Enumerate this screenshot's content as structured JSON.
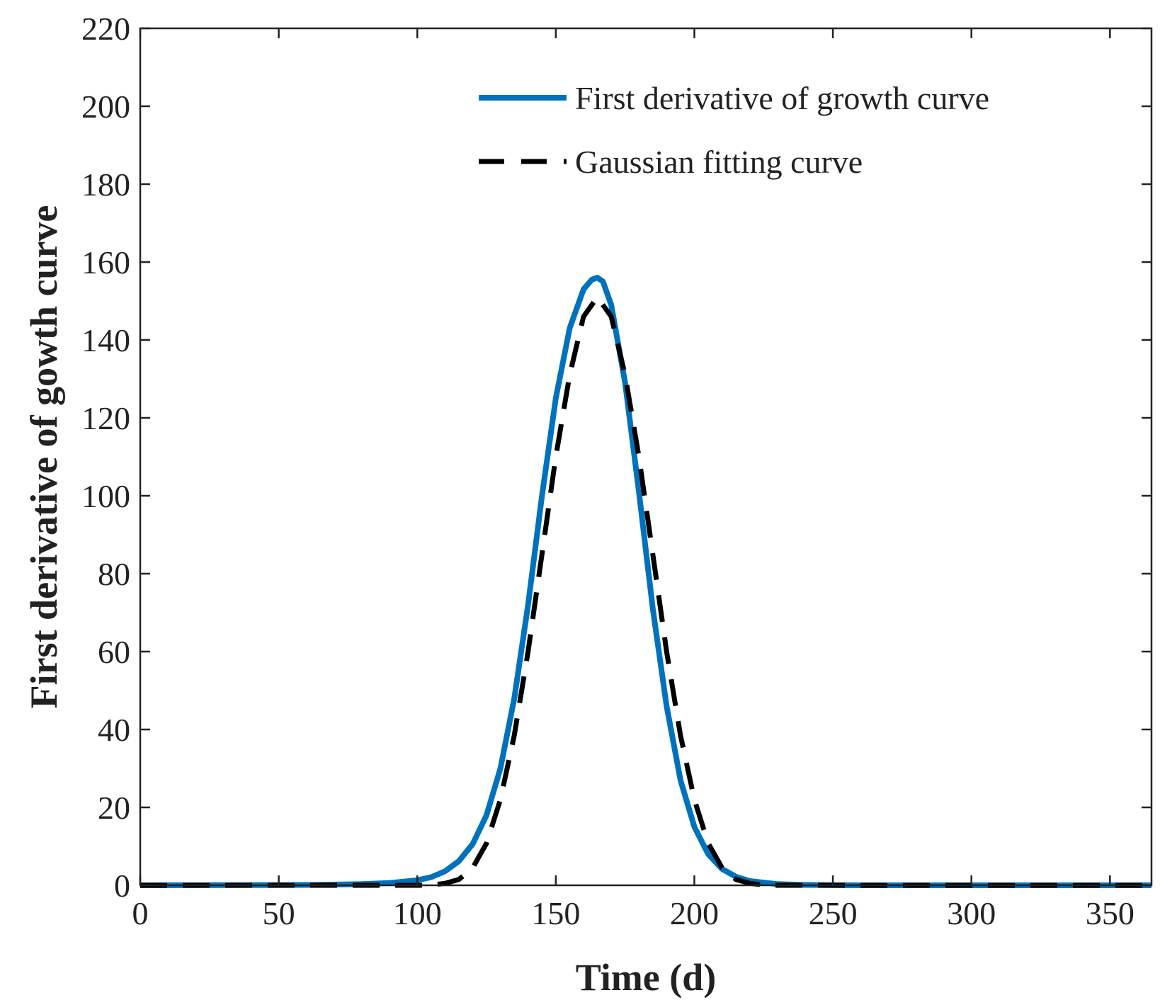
{
  "chart_data": {
    "type": "line",
    "xlabel": "Time (d)",
    "ylabel": "First derivative of gowth curve",
    "xlim": [
      0,
      365
    ],
    "ylim": [
      0,
      220
    ],
    "xticks": [
      0,
      50,
      100,
      150,
      200,
      250,
      300,
      350
    ],
    "yticks": [
      0,
      20,
      40,
      60,
      80,
      100,
      120,
      140,
      160,
      180,
      200,
      220
    ],
    "grid": false,
    "legend_position": "top-right",
    "series": [
      {
        "name": "First derivative of growth curve",
        "color": "#0072BD",
        "line_style": "solid",
        "x": [
          0,
          60,
          80,
          90,
          100,
          105,
          110,
          115,
          120,
          125,
          130,
          135,
          140,
          145,
          150,
          155,
          160,
          163,
          165,
          167,
          170,
          175,
          180,
          185,
          190,
          195,
          200,
          205,
          210,
          215,
          220,
          230,
          240,
          260,
          365
        ],
        "y": [
          0,
          0.1,
          0.3,
          0.6,
          1.3,
          2.1,
          3.6,
          6.2,
          10.6,
          18.0,
          30.0,
          48.0,
          72.0,
          100.0,
          125.0,
          143.0,
          153.0,
          155.5,
          156.0,
          155.0,
          149.0,
          129.0,
          101.0,
          71.0,
          46.0,
          27.0,
          15.0,
          8.0,
          4.2,
          2.2,
          1.1,
          0.3,
          0.1,
          0,
          0
        ]
      },
      {
        "name": "Gaussian fitting curve",
        "color": "#000000",
        "line_style": "dashed",
        "x": [
          0,
          100,
          105,
          110,
          115,
          120,
          125,
          130,
          135,
          140,
          145,
          150,
          155,
          160,
          165,
          170,
          175,
          180,
          185,
          190,
          195,
          200,
          205,
          210,
          215,
          220,
          225,
          230,
          240,
          365
        ],
        "y": [
          0,
          0,
          0.1,
          0.5,
          1.5,
          4.5,
          10.8,
          22.0,
          38.5,
          60.0,
          85.0,
          110.0,
          131.0,
          146.0,
          151.0,
          146.0,
          131.0,
          110.0,
          85.0,
          60.0,
          38.5,
          22.0,
          10.8,
          4.5,
          1.5,
          0.5,
          0.1,
          0,
          0,
          0
        ]
      }
    ]
  }
}
